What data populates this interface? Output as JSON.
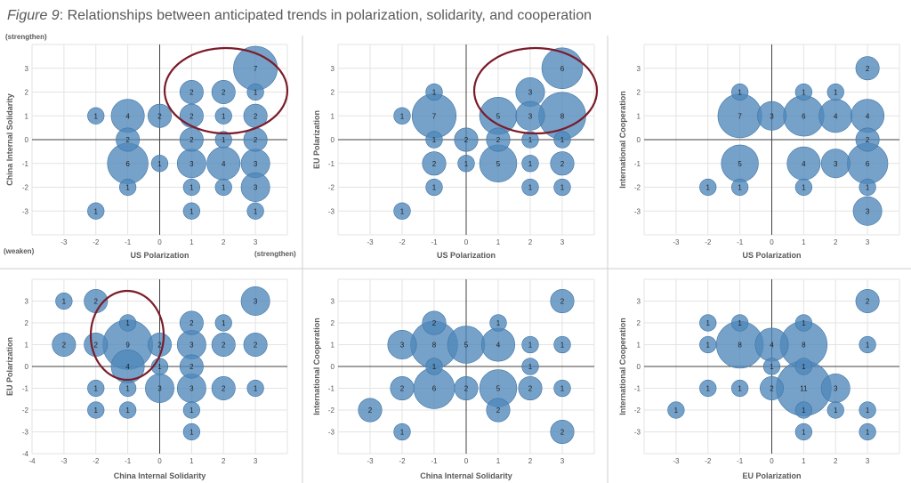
{
  "figure": {
    "label": "Figure 9",
    "title": ": Relationships between anticipated trends in polarization, solidarity, and cooperation",
    "annotations": {
      "strengthen_top": "(strengthen)",
      "weaken": "(weaken)",
      "strengthen_right": "(strengthen)"
    }
  },
  "colors": {
    "bubble_fill": "#4f88bb",
    "bubble_stroke": "#3f74a4",
    "circle": "#7b1c2a",
    "grid": "#e3e3e3",
    "axis": "#404040",
    "label": "#595959"
  },
  "chart_data": [
    {
      "type": "scatter",
      "subtype": "bubble",
      "xlabel": "US Polarization",
      "ylabel": "China Internal Solidarity",
      "xlim": [
        -4,
        4
      ],
      "ylim": [
        -4,
        4
      ],
      "xticks": [
        "-3",
        "-2",
        "-1",
        "0",
        "1",
        "2",
        "3"
      ],
      "yticks": [
        "-3",
        "-2",
        "-1",
        "0",
        "1",
        "2",
        "3"
      ],
      "grid": true,
      "points": [
        {
          "x": 3,
          "y": 3,
          "n": "7"
        },
        {
          "x": 1,
          "y": 2,
          "n": "2"
        },
        {
          "x": 2,
          "y": 2,
          "n": "2"
        },
        {
          "x": 3,
          "y": 2,
          "n": "1"
        },
        {
          "x": -2,
          "y": 1,
          "n": "1"
        },
        {
          "x": -1,
          "y": 1,
          "n": "4"
        },
        {
          "x": 0,
          "y": 1,
          "n": "2"
        },
        {
          "x": 1,
          "y": 1,
          "n": "2"
        },
        {
          "x": 2,
          "y": 1,
          "n": "1"
        },
        {
          "x": 3,
          "y": 1,
          "n": "2"
        },
        {
          "x": -1,
          "y": 0,
          "n": "2"
        },
        {
          "x": 1,
          "y": 0,
          "n": "2"
        },
        {
          "x": 2,
          "y": 0,
          "n": "1"
        },
        {
          "x": 3,
          "y": 0,
          "n": "2"
        },
        {
          "x": -1,
          "y": -1,
          "n": "6"
        },
        {
          "x": 0,
          "y": -1,
          "n": "1"
        },
        {
          "x": 1,
          "y": -1,
          "n": "3"
        },
        {
          "x": 2,
          "y": -1,
          "n": "4"
        },
        {
          "x": 3,
          "y": -1,
          "n": "3"
        },
        {
          "x": -1,
          "y": -2,
          "n": "1"
        },
        {
          "x": 1,
          "y": -2,
          "n": "1"
        },
        {
          "x": 2,
          "y": -2,
          "n": "1"
        },
        {
          "x": 3,
          "y": -2,
          "n": "3"
        },
        {
          "x": -2,
          "y": -3,
          "n": "1"
        },
        {
          "x": 1,
          "y": -3,
          "n": "1"
        },
        {
          "x": 3,
          "y": -3,
          "n": "1"
        }
      ]
    },
    {
      "type": "scatter",
      "subtype": "bubble",
      "xlabel": "US Polarization",
      "ylabel": "EU Polarization",
      "xlim": [
        -4,
        4
      ],
      "ylim": [
        -4,
        4
      ],
      "xticks": [
        "-3",
        "-2",
        "-1",
        "0",
        "1",
        "2",
        "3"
      ],
      "yticks": [
        "-3",
        "-2",
        "-1",
        "0",
        "1",
        "2",
        "3"
      ],
      "grid": true,
      "points": [
        {
          "x": 3,
          "y": 3,
          "n": "6"
        },
        {
          "x": -1,
          "y": 2,
          "n": "1"
        },
        {
          "x": 2,
          "y": 2,
          "n": "3"
        },
        {
          "x": -2,
          "y": 1,
          "n": "1"
        },
        {
          "x": -1,
          "y": 1,
          "n": "7"
        },
        {
          "x": 1,
          "y": 1,
          "n": "5"
        },
        {
          "x": 2,
          "y": 1,
          "n": "3"
        },
        {
          "x": 3,
          "y": 1,
          "n": "8"
        },
        {
          "x": -1,
          "y": 0,
          "n": "1"
        },
        {
          "x": 0,
          "y": 0,
          "n": "2"
        },
        {
          "x": 1,
          "y": 0,
          "n": "2"
        },
        {
          "x": 2,
          "y": 0,
          "n": "1"
        },
        {
          "x": 3,
          "y": 0,
          "n": "1"
        },
        {
          "x": -1,
          "y": -1,
          "n": "2"
        },
        {
          "x": 0,
          "y": -1,
          "n": "1"
        },
        {
          "x": 1,
          "y": -1,
          "n": "5"
        },
        {
          "x": 2,
          "y": -1,
          "n": "1"
        },
        {
          "x": 3,
          "y": -1,
          "n": "2"
        },
        {
          "x": -1,
          "y": -2,
          "n": "1"
        },
        {
          "x": 2,
          "y": -2,
          "n": "1"
        },
        {
          "x": 3,
          "y": -2,
          "n": "1"
        },
        {
          "x": -2,
          "y": -3,
          "n": "1"
        }
      ]
    },
    {
      "type": "scatter",
      "subtype": "bubble",
      "xlabel": "US Polarization",
      "ylabel": "International Cooperation",
      "xlim": [
        -4,
        4
      ],
      "ylim": [
        -4,
        4
      ],
      "xticks": [
        "-3",
        "-2",
        "-1",
        "0",
        "1",
        "2",
        "3"
      ],
      "yticks": [
        "-3",
        "-2",
        "-1",
        "0",
        "1",
        "2",
        "3"
      ],
      "grid": true,
      "points": [
        {
          "x": 3,
          "y": 3,
          "n": "2"
        },
        {
          "x": -1,
          "y": 2,
          "n": "1"
        },
        {
          "x": 1,
          "y": 2,
          "n": "1"
        },
        {
          "x": 2,
          "y": 2,
          "n": "1"
        },
        {
          "x": -1,
          "y": 1,
          "n": "7"
        },
        {
          "x": 0,
          "y": 1,
          "n": "3"
        },
        {
          "x": 1,
          "y": 1,
          "n": "6"
        },
        {
          "x": 2,
          "y": 1,
          "n": "4"
        },
        {
          "x": 3,
          "y": 1,
          "n": "4"
        },
        {
          "x": 3,
          "y": 0,
          "n": "2"
        },
        {
          "x": -1,
          "y": -1,
          "n": "5"
        },
        {
          "x": 1,
          "y": -1,
          "n": "4"
        },
        {
          "x": 2,
          "y": -1,
          "n": "3"
        },
        {
          "x": 3,
          "y": -1,
          "n": "6"
        },
        {
          "x": -2,
          "y": -2,
          "n": "1"
        },
        {
          "x": -1,
          "y": -2,
          "n": "1"
        },
        {
          "x": 1,
          "y": -2,
          "n": "1"
        },
        {
          "x": 3,
          "y": -2,
          "n": "1"
        },
        {
          "x": 3,
          "y": -3,
          "n": "3"
        }
      ]
    },
    {
      "type": "scatter",
      "subtype": "bubble",
      "xlabel": "China Internal Solidarity",
      "ylabel": "EU Polarization",
      "xlim": [
        -4,
        4
      ],
      "ylim": [
        -4,
        4
      ],
      "xticks": [
        "-4",
        "-3",
        "-2",
        "-1",
        "0",
        "1",
        "2",
        "3"
      ],
      "yticks": [
        "-4",
        "-3",
        "-2",
        "-1",
        "0",
        "1",
        "2",
        "3"
      ],
      "grid": true,
      "points": [
        {
          "x": -3,
          "y": 3,
          "n": "1"
        },
        {
          "x": -2,
          "y": 3,
          "n": "2"
        },
        {
          "x": 3,
          "y": 3,
          "n": "3"
        },
        {
          "x": -1,
          "y": 2,
          "n": "1"
        },
        {
          "x": 1,
          "y": 2,
          "n": "2"
        },
        {
          "x": 2,
          "y": 2,
          "n": "1"
        },
        {
          "x": -3,
          "y": 1,
          "n": "2"
        },
        {
          "x": -2,
          "y": 1,
          "n": "2"
        },
        {
          "x": -1,
          "y": 1,
          "n": "9"
        },
        {
          "x": 0,
          "y": 1,
          "n": "2"
        },
        {
          "x": 1,
          "y": 1,
          "n": "3"
        },
        {
          "x": 2,
          "y": 1,
          "n": "2"
        },
        {
          "x": 3,
          "y": 1,
          "n": "2"
        },
        {
          "x": -1,
          "y": 0,
          "n": "4"
        },
        {
          "x": 0,
          "y": 0,
          "n": "1"
        },
        {
          "x": 1,
          "y": 0,
          "n": "2"
        },
        {
          "x": -2,
          "y": -1,
          "n": "1"
        },
        {
          "x": -1,
          "y": -1,
          "n": "1"
        },
        {
          "x": 0,
          "y": -1,
          "n": "3"
        },
        {
          "x": 1,
          "y": -1,
          "n": "3"
        },
        {
          "x": 2,
          "y": -1,
          "n": "2"
        },
        {
          "x": 3,
          "y": -1,
          "n": "1"
        },
        {
          "x": -2,
          "y": -2,
          "n": "1"
        },
        {
          "x": -1,
          "y": -2,
          "n": "1"
        },
        {
          "x": 1,
          "y": -2,
          "n": "1"
        },
        {
          "x": 1,
          "y": -3,
          "n": "1"
        }
      ]
    },
    {
      "type": "scatter",
      "subtype": "bubble",
      "xlabel": "China Internal Solidarity",
      "ylabel": "International Cooperation",
      "xlim": [
        -4,
        4
      ],
      "ylim": [
        -4,
        4
      ],
      "xticks": [
        "-3",
        "-2",
        "-1",
        "0",
        "1",
        "2",
        "3"
      ],
      "yticks": [
        "-3",
        "-2",
        "-1",
        "0",
        "1",
        "2",
        "3"
      ],
      "grid": true,
      "points": [
        {
          "x": 3,
          "y": 3,
          "n": "2"
        },
        {
          "x": -1,
          "y": 2,
          "n": "2"
        },
        {
          "x": 1,
          "y": 2,
          "n": "1"
        },
        {
          "x": -2,
          "y": 1,
          "n": "3"
        },
        {
          "x": -1,
          "y": 1,
          "n": "8"
        },
        {
          "x": 0,
          "y": 1,
          "n": "5"
        },
        {
          "x": 1,
          "y": 1,
          "n": "4"
        },
        {
          "x": 2,
          "y": 1,
          "n": "1"
        },
        {
          "x": 3,
          "y": 1,
          "n": "1"
        },
        {
          "x": -1,
          "y": 0,
          "n": "1"
        },
        {
          "x": 2,
          "y": 0,
          "n": "1"
        },
        {
          "x": -2,
          "y": -1,
          "n": "2"
        },
        {
          "x": -1,
          "y": -1,
          "n": "6"
        },
        {
          "x": 0,
          "y": -1,
          "n": "2"
        },
        {
          "x": 1,
          "y": -1,
          "n": "5"
        },
        {
          "x": 2,
          "y": -1,
          "n": "2"
        },
        {
          "x": 3,
          "y": -1,
          "n": "1"
        },
        {
          "x": -3,
          "y": -2,
          "n": "2"
        },
        {
          "x": 1,
          "y": -2,
          "n": "2"
        },
        {
          "x": -2,
          "y": -3,
          "n": "1"
        },
        {
          "x": 3,
          "y": -3,
          "n": "2"
        }
      ]
    },
    {
      "type": "scatter",
      "subtype": "bubble",
      "xlabel": "EU Polarization",
      "ylabel": "International Cooperation",
      "xlim": [
        -4,
        4
      ],
      "ylim": [
        -4,
        4
      ],
      "xticks": [
        "-3",
        "-2",
        "-1",
        "0",
        "1",
        "2",
        "3"
      ],
      "yticks": [
        "-3",
        "-2",
        "-1",
        "0",
        "1",
        "2",
        "3"
      ],
      "grid": true,
      "points": [
        {
          "x": 3,
          "y": 3,
          "n": "2"
        },
        {
          "x": -2,
          "y": 2,
          "n": "1"
        },
        {
          "x": -1,
          "y": 2,
          "n": "1"
        },
        {
          "x": 1,
          "y": 2,
          "n": "1"
        },
        {
          "x": -2,
          "y": 1,
          "n": "1"
        },
        {
          "x": -1,
          "y": 1,
          "n": "8"
        },
        {
          "x": 0,
          "y": 1,
          "n": "4"
        },
        {
          "x": 1,
          "y": 1,
          "n": "8"
        },
        {
          "x": 3,
          "y": 1,
          "n": "1"
        },
        {
          "x": 0,
          "y": 0,
          "n": "1"
        },
        {
          "x": 1,
          "y": 0,
          "n": "1"
        },
        {
          "x": -2,
          "y": -1,
          "n": "1"
        },
        {
          "x": -1,
          "y": -1,
          "n": "1"
        },
        {
          "x": 0,
          "y": -1,
          "n": "2"
        },
        {
          "x": 1,
          "y": -1,
          "n": "11"
        },
        {
          "x": 2,
          "y": -1,
          "n": "3"
        },
        {
          "x": -3,
          "y": -2,
          "n": "1"
        },
        {
          "x": 1,
          "y": -2,
          "n": "1"
        },
        {
          "x": 2,
          "y": -2,
          "n": "1"
        },
        {
          "x": 3,
          "y": -2,
          "n": "1"
        },
        {
          "x": 1,
          "y": -3,
          "n": "1"
        },
        {
          "x": 3,
          "y": -3,
          "n": "1"
        }
      ]
    }
  ]
}
